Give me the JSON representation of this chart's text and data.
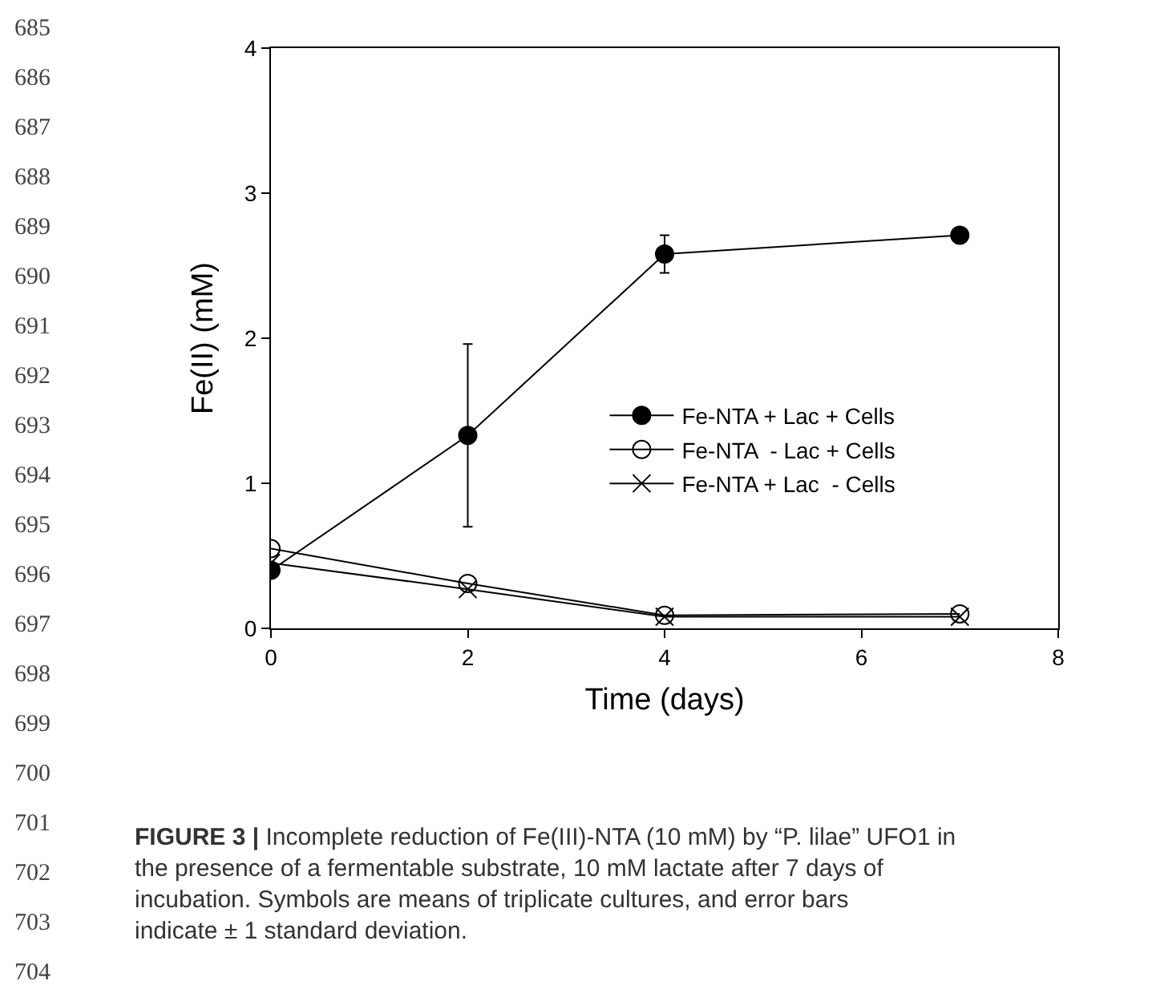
{
  "chart_data": {
    "type": "line",
    "x": [
      0,
      2,
      4,
      7
    ],
    "series": [
      {
        "name": "Fe-NTA + Lac + Cells",
        "color": "#000000",
        "marker": "circle",
        "values": [
          0.4,
          1.33,
          2.58,
          2.71
        ],
        "errors": [
          null,
          [
            0.7,
            1.96
          ],
          [
            2.45,
            2.71
          ],
          null
        ]
      },
      {
        "name": "Fe-NTA  - Lac + Cells",
        "color": "#000000",
        "marker": "circle-open",
        "values": [
          0.55,
          0.31,
          0.09,
          0.1
        ]
      },
      {
        "name": "Fe-NTA + Lac  - Cells",
        "color": "#000000",
        "marker": "cross",
        "values": [
          0.45,
          0.27,
          0.08,
          0.08
        ]
      }
    ],
    "xlabel": "Time (days)",
    "ylabel": "Fe(II) (mM)",
    "xlim": [
      0,
      8
    ],
    "xticks": [
      0,
      2,
      4,
      6,
      8
    ],
    "ylim": [
      0,
      4
    ],
    "yticks": [
      0,
      1,
      2,
      3,
      4
    ],
    "legend": "center",
    "line_style": "solid",
    "annotations": [
      "685",
      "686",
      "687",
      "688",
      "689",
      "690",
      "691",
      "692",
      "693",
      "694",
      "695",
      "696",
      "697",
      "698",
      "699",
      "700",
      "701",
      "702",
      "703",
      "704",
      "FIGURE 3 | Incomplete reduction of Fe(III)-NTA (10 mM) by “P. lilae” UFO1 in the presence of a fermentable substrate, 10 mM lactate after 7 days of incubation. Symbols are means of triplicate cultures, and error bars indicate ± 1 standard deviation."
    ]
  }
}
